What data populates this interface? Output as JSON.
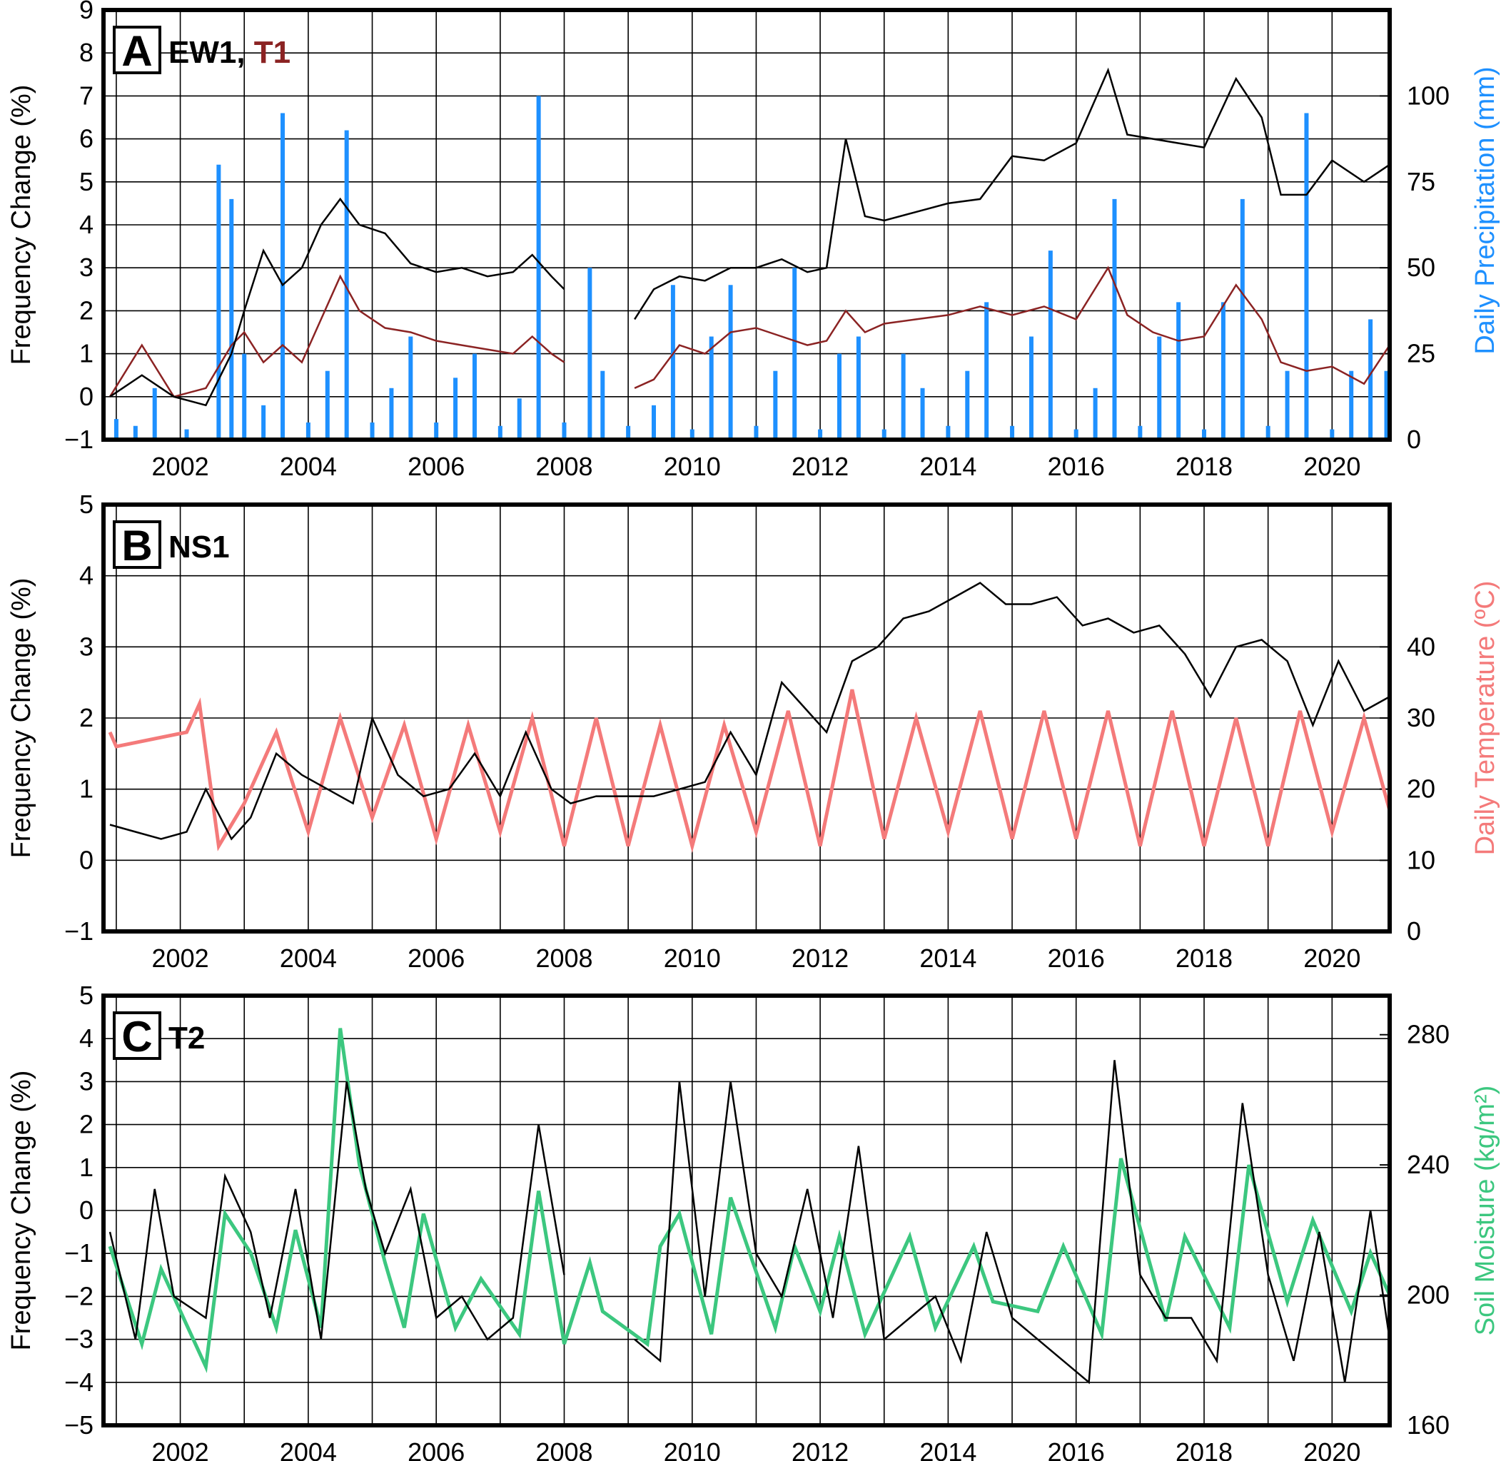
{
  "chart_data": [
    {
      "panel": "A",
      "type": "line",
      "label_parts": [
        "EW1, ",
        "T1"
      ],
      "xlabel": "",
      "ylabel": "Frequency Change (%)",
      "y2label": "Daily Precipitation (mm)",
      "xlim": [
        2000.8,
        2020.9
      ],
      "ylim": [
        -1,
        9
      ],
      "y2lim": [
        0,
        125
      ],
      "xticks": [
        "2002",
        "2004",
        "2006",
        "2008",
        "2010",
        "2012",
        "2014",
        "2016",
        "2018",
        "2020"
      ],
      "yticks": [
        "−1",
        "0",
        "1",
        "2",
        "3",
        "4",
        "5",
        "6",
        "7",
        "8",
        "9"
      ],
      "y2ticks": [
        "0",
        "25",
        "50",
        "75",
        "100"
      ],
      "grid": true,
      "colors": {
        "EW1": "#000000",
        "T1": "#8b2323",
        "precip": "#1e90ff",
        "label_T1": "#8b2323"
      },
      "series": [
        {
          "name": "EW1",
          "x": [
            2000.9,
            2001.4,
            2001.9,
            2002.4,
            2002.8,
            2003.0,
            2003.3,
            2003.6,
            2003.9,
            2004.2,
            2004.5,
            2004.8,
            2005.2,
            2005.6,
            2006.0,
            2006.4,
            2006.8,
            2007.2,
            2007.5,
            2007.8,
            2008.0,
            2009.1,
            2009.4,
            2009.8,
            2010.2,
            2010.6,
            2011.0,
            2011.4,
            2011.8,
            2012.1,
            2012.4,
            2012.7,
            2013.0,
            2013.5,
            2014.0,
            2014.5,
            2015.0,
            2015.5,
            2016.0,
            2016.5,
            2016.8,
            2017.2,
            2017.6,
            2018.0,
            2018.5,
            2018.9,
            2019.2,
            2019.6,
            2020.0,
            2020.5,
            2020.9
          ],
          "y": [
            0.0,
            0.5,
            0.0,
            -0.2,
            1.0,
            2.0,
            3.4,
            2.6,
            3.0,
            4.0,
            4.6,
            4.0,
            3.8,
            3.1,
            2.9,
            3.0,
            2.8,
            2.9,
            3.3,
            2.8,
            2.5,
            1.8,
            2.5,
            2.8,
            2.7,
            3.0,
            3.0,
            3.2,
            2.9,
            3.0,
            6.0,
            4.2,
            4.1,
            4.3,
            4.5,
            4.6,
            5.6,
            5.5,
            5.9,
            7.6,
            6.1,
            6.0,
            5.9,
            5.8,
            7.4,
            6.5,
            4.7,
            4.7,
            5.5,
            5.0,
            5.4
          ]
        },
        {
          "name": "T1",
          "x": [
            2000.9,
            2001.4,
            2001.9,
            2002.4,
            2002.8,
            2003.0,
            2003.3,
            2003.6,
            2003.9,
            2004.2,
            2004.5,
            2004.8,
            2005.2,
            2005.6,
            2006.0,
            2006.4,
            2006.8,
            2007.2,
            2007.5,
            2007.8,
            2008.0,
            2009.1,
            2009.4,
            2009.8,
            2010.2,
            2010.6,
            2011.0,
            2011.4,
            2011.8,
            2012.1,
            2012.4,
            2012.7,
            2013.0,
            2013.5,
            2014.0,
            2014.5,
            2015.0,
            2015.5,
            2016.0,
            2016.5,
            2016.8,
            2017.2,
            2017.6,
            2018.0,
            2018.5,
            2018.9,
            2019.2,
            2019.6,
            2020.0,
            2020.5,
            2020.9
          ],
          "y": [
            0.0,
            1.2,
            0.0,
            0.2,
            1.2,
            1.5,
            0.8,
            1.2,
            0.8,
            1.8,
            2.8,
            2.0,
            1.6,
            1.5,
            1.3,
            1.2,
            1.1,
            1.0,
            1.4,
            1.0,
            0.8,
            0.2,
            0.4,
            1.2,
            1.0,
            1.5,
            1.6,
            1.4,
            1.2,
            1.3,
            2.0,
            1.5,
            1.7,
            1.8,
            1.9,
            2.1,
            1.9,
            2.1,
            1.8,
            3.0,
            1.9,
            1.5,
            1.3,
            1.4,
            2.6,
            1.8,
            0.8,
            0.6,
            0.7,
            0.3,
            1.2
          ]
        },
        {
          "name": "Daily Precipitation (mm)",
          "x": [
            2001.0,
            2001.3,
            2001.6,
            2002.1,
            2002.6,
            2002.8,
            2003.0,
            2003.3,
            2003.6,
            2004.0,
            2004.3,
            2004.6,
            2005.0,
            2005.3,
            2005.6,
            2006.0,
            2006.3,
            2006.6,
            2007.0,
            2007.3,
            2007.6,
            2008.0,
            2008.4,
            2008.6,
            2009.0,
            2009.4,
            2009.7,
            2010.0,
            2010.3,
            2010.6,
            2011.0,
            2011.3,
            2011.6,
            2012.0,
            2012.3,
            2012.6,
            2013.0,
            2013.3,
            2013.6,
            2014.0,
            2014.3,
            2014.6,
            2015.0,
            2015.3,
            2015.6,
            2016.0,
            2016.3,
            2016.6,
            2017.0,
            2017.3,
            2017.6,
            2018.0,
            2018.3,
            2018.6,
            2019.0,
            2019.3,
            2019.6,
            2020.0,
            2020.3,
            2020.6,
            2020.85
          ],
          "y": [
            6,
            4,
            15,
            3,
            80,
            70,
            25,
            10,
            95,
            5,
            20,
            90,
            5,
            15,
            30,
            5,
            18,
            25,
            4,
            12,
            100,
            5,
            50,
            20,
            4,
            10,
            45,
            3,
            30,
            45,
            4,
            20,
            50,
            3,
            25,
            30,
            3,
            25,
            15,
            4,
            20,
            40,
            4,
            30,
            55,
            3,
            15,
            70,
            4,
            30,
            40,
            3,
            40,
            70,
            4,
            20,
            95,
            3,
            20,
            35,
            20
          ]
        }
      ]
    },
    {
      "panel": "B",
      "type": "line",
      "label_parts": [
        "NS1"
      ],
      "xlabel": "",
      "ylabel": "Frequency Change (%)",
      "y2label": "Daily Temperature (ºC)",
      "xlim": [
        2000.8,
        2020.9
      ],
      "ylim": [
        -1,
        5
      ],
      "y2lim": [
        0,
        60
      ],
      "xticks": [
        "2002",
        "2004",
        "2006",
        "2008",
        "2010",
        "2012",
        "2014",
        "2016",
        "2018",
        "2020"
      ],
      "yticks": [
        "−1",
        "0",
        "1",
        "2",
        "3",
        "4",
        "5"
      ],
      "y2ticks": [
        "0",
        "10",
        "20",
        "30",
        "40"
      ],
      "grid": true,
      "colors": {
        "NS1": "#000000",
        "temperature": "#f47a7a"
      },
      "series": [
        {
          "name": "NS1",
          "x": [
            2000.9,
            2001.3,
            2001.7,
            2002.1,
            2002.4,
            2002.8,
            2003.1,
            2003.5,
            2003.9,
            2004.3,
            2004.7,
            2005.0,
            2005.4,
            2005.8,
            2006.2,
            2006.6,
            2007.0,
            2007.4,
            2007.8,
            2008.1,
            2008.5,
            2009.0,
            2009.4,
            2009.8,
            2010.2,
            2010.6,
            2011.0,
            2011.4,
            2011.8,
            2012.1,
            2012.5,
            2012.9,
            2013.3,
            2013.7,
            2014.1,
            2014.5,
            2014.9,
            2015.3,
            2015.7,
            2016.1,
            2016.5,
            2016.9,
            2017.3,
            2017.7,
            2018.1,
            2018.5,
            2018.9,
            2019.3,
            2019.7,
            2020.1,
            2020.5,
            2020.9
          ],
          "y": [
            0.5,
            0.4,
            0.3,
            0.4,
            1.0,
            0.3,
            0.6,
            1.5,
            1.2,
            1.0,
            0.8,
            2.0,
            1.2,
            0.9,
            1.0,
            1.5,
            0.9,
            1.8,
            1.0,
            0.8,
            0.9,
            0.9,
            0.9,
            1.0,
            1.1,
            1.8,
            1.2,
            2.5,
            2.1,
            1.8,
            2.8,
            3.0,
            3.4,
            3.5,
            3.7,
            3.9,
            3.6,
            3.6,
            3.7,
            3.3,
            3.4,
            3.2,
            3.3,
            2.9,
            2.3,
            3.0,
            3.1,
            2.8,
            1.9,
            2.8,
            2.1,
            2.3
          ]
        },
        {
          "name": "Daily Temperature (ºC)",
          "x": [
            2000.9,
            2001.0,
            2002.1,
            2002.3,
            2002.6,
            2003.0,
            2003.5,
            2004.0,
            2004.5,
            2005.0,
            2005.5,
            2006.0,
            2006.5,
            2007.0,
            2007.5,
            2008.0,
            2008.5,
            2009.0,
            2009.5,
            2010.0,
            2010.5,
            2011.0,
            2011.5,
            2012.0,
            2012.5,
            2013.0,
            2013.5,
            2014.0,
            2014.5,
            2015.0,
            2015.5,
            2016.0,
            2016.5,
            2017.0,
            2017.5,
            2018.0,
            2018.5,
            2019.0,
            2019.5,
            2020.0,
            2020.5,
            2020.9
          ],
          "y": [
            28,
            26,
            28,
            32,
            12,
            18,
            28,
            14,
            30,
            16,
            29,
            13,
            29,
            14,
            30,
            12,
            30,
            12,
            29,
            12,
            29,
            14,
            31,
            12,
            34,
            13,
            30,
            14,
            31,
            13,
            31,
            13,
            31,
            12,
            31,
            12,
            30,
            12,
            31,
            14,
            30,
            17
          ]
        }
      ]
    },
    {
      "panel": "C",
      "type": "line",
      "label_parts": [
        "T2"
      ],
      "xlabel": "",
      "ylabel": "Frequency Change (%)",
      "y2label": "Soil Moisture (kg/m²)",
      "xlim": [
        2000.8,
        2020.9
      ],
      "ylim": [
        -5,
        5
      ],
      "y2lim": [
        160,
        292
      ],
      "xticks": [
        "2002",
        "2004",
        "2006",
        "2008",
        "2010",
        "2012",
        "2014",
        "2016",
        "2018",
        "2020"
      ],
      "yticks": [
        "−5",
        "−4",
        "−3",
        "−2",
        "−1",
        "0",
        "1",
        "2",
        "3",
        "4",
        "5"
      ],
      "y2ticks": [
        "160",
        "200",
        "240",
        "280"
      ],
      "grid": true,
      "colors": {
        "T2": "#000000",
        "soil_moisture": "#3cc77f"
      },
      "series": [
        {
          "name": "T2",
          "x": [
            2000.9,
            2001.3,
            2001.6,
            2001.9,
            2002.4,
            2002.7,
            2003.1,
            2003.4,
            2003.8,
            2004.2,
            2004.6,
            2004.9,
            2005.2,
            2005.6,
            2006.0,
            2006.4,
            2006.8,
            2007.2,
            2007.6,
            2008.0,
            2009.1,
            2009.5,
            2009.8,
            2010.2,
            2010.6,
            2011.0,
            2011.4,
            2011.8,
            2012.2,
            2012.6,
            2013.0,
            2013.4,
            2013.8,
            2014.2,
            2014.6,
            2015.0,
            2015.4,
            2015.8,
            2016.2,
            2016.6,
            2017.0,
            2017.4,
            2017.8,
            2018.2,
            2018.6,
            2019.0,
            2019.4,
            2019.8,
            2020.2,
            2020.6,
            2020.9
          ],
          "y": [
            -0.5,
            -3.0,
            0.5,
            -2.0,
            -2.5,
            0.8,
            -0.5,
            -2.5,
            0.5,
            -3.0,
            3.0,
            0.5,
            -1.0,
            0.5,
            -2.5,
            -2.0,
            -3.0,
            -2.5,
            2.0,
            -1.5,
            -3.0,
            -3.5,
            3.0,
            -2.0,
            3.0,
            -1.0,
            -2.0,
            0.5,
            -2.5,
            1.5,
            -3.0,
            -2.5,
            -2.0,
            -3.5,
            -0.5,
            -2.5,
            -3.0,
            -3.5,
            -4.0,
            3.5,
            -1.5,
            -2.5,
            -2.5,
            -3.5,
            2.5,
            -1.5,
            -3.5,
            -0.5,
            -4.0,
            0.0,
            -3.0
          ]
        },
        {
          "name": "Soil Moisture (kg/m²)",
          "x": [
            2000.9,
            2001.4,
            2001.7,
            2002.4,
            2002.7,
            2003.1,
            2003.5,
            2003.8,
            2004.2,
            2004.5,
            2004.8,
            2005.2,
            2005.5,
            2005.8,
            2006.3,
            2006.7,
            2007.3,
            2007.6,
            2008.0,
            2008.4,
            2008.6,
            2009.3,
            2009.5,
            2009.8,
            2010.3,
            2010.6,
            2011.3,
            2011.6,
            2012.0,
            2012.3,
            2012.7,
            2013.4,
            2013.8,
            2014.4,
            2014.7,
            2015.4,
            2015.8,
            2016.4,
            2016.7,
            2017.4,
            2017.7,
            2018.4,
            2018.7,
            2019.3,
            2019.7,
            2020.3,
            2020.6,
            2020.9
          ],
          "y": [
            215,
            185,
            208,
            178,
            225,
            213,
            190,
            220,
            190,
            282,
            240,
            210,
            190,
            225,
            190,
            205,
            188,
            232,
            185,
            210,
            195,
            185,
            215,
            225,
            188,
            230,
            190,
            215,
            195,
            218,
            188,
            218,
            190,
            215,
            198,
            195,
            215,
            188,
            242,
            192,
            218,
            190,
            240,
            198,
            223,
            195,
            213,
            200
          ]
        }
      ]
    }
  ]
}
